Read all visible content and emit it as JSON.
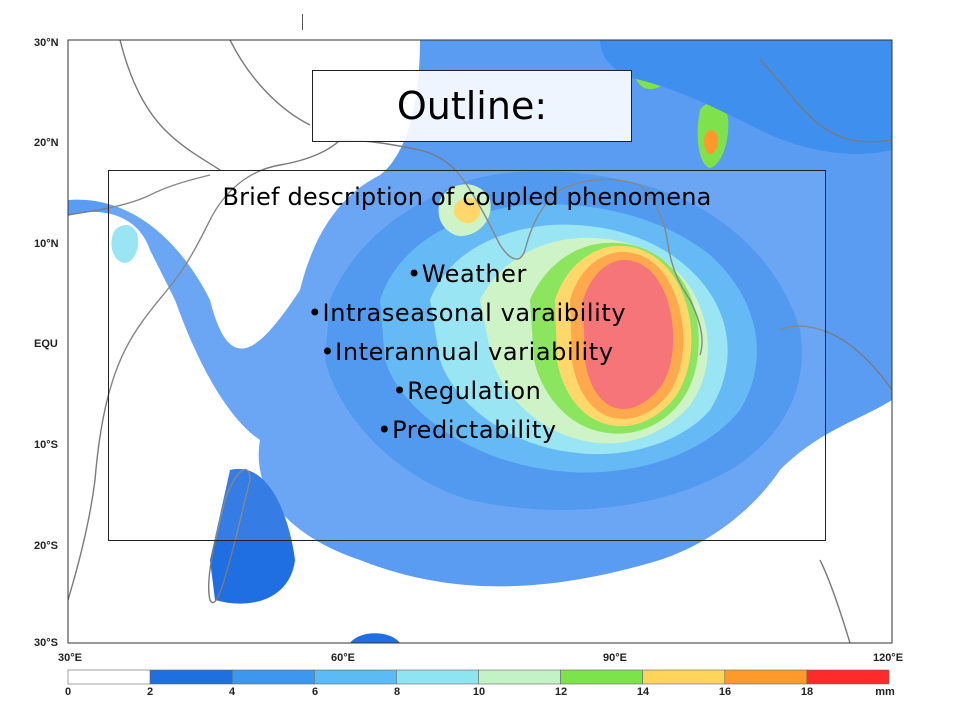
{
  "slide": {
    "title": "Outline:",
    "subtitle": "Brief description of coupled phenomena",
    "bullets": [
      "Weather",
      "Intraseasonal varaibility",
      "Interannual variability",
      "Regulation",
      "Predictability"
    ]
  },
  "map": {
    "lat_labels": [
      "30°N",
      "20°N",
      "10°N",
      "EQU",
      "10°S",
      "20°S",
      "30°S"
    ],
    "lon_labels": [
      "30°E",
      "60°E",
      "90°E",
      "120°E"
    ],
    "colorbar": {
      "labels": [
        "0",
        "2",
        "4",
        "6",
        "8",
        "10",
        "12",
        "14",
        "16",
        "18",
        "mm"
      ],
      "colors": [
        "#ffffff",
        "#1e6fe0",
        "#3d97ef",
        "#5bbcf5",
        "#8fe4f2",
        "#c2f2c6",
        "#7de34b",
        "#ffd45a",
        "#ff9a2a",
        "#ff2b2b",
        "#c8101e"
      ]
    }
  }
}
